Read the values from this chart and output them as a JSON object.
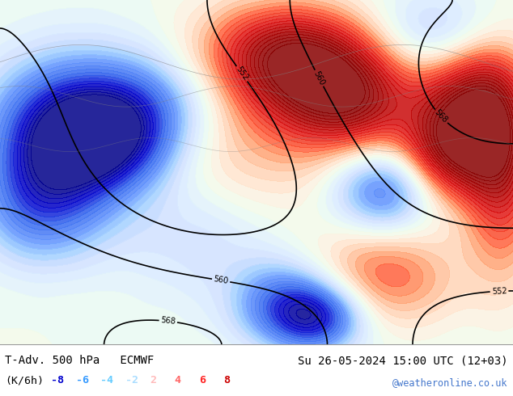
{
  "title_left": "T-Adv. 500 hPa   ECMWF",
  "title_right": "Su 26-05-2024 15:00 UTC (12+03)",
  "legend_label": "(K/6h)",
  "legend_values": [
    "-8",
    "-6",
    "-4",
    "-2",
    "2",
    "4",
    "6",
    "8"
  ],
  "legend_colors": [
    "#0000cd",
    "#3399ff",
    "#66ccff",
    "#aaddff",
    "#ffbbbb",
    "#ff6666",
    "#ff2222",
    "#cc0000"
  ],
  "watermark": "@weatheronline.co.uk",
  "watermark_color": "#4477cc",
  "background_map_color": "#aaddaa",
  "fig_width": 6.34,
  "fig_height": 4.9,
  "dpi": 100,
  "bottom_bar_color": "#e8e8e8",
  "title_fontsize": 10,
  "legend_fontsize": 9.5
}
